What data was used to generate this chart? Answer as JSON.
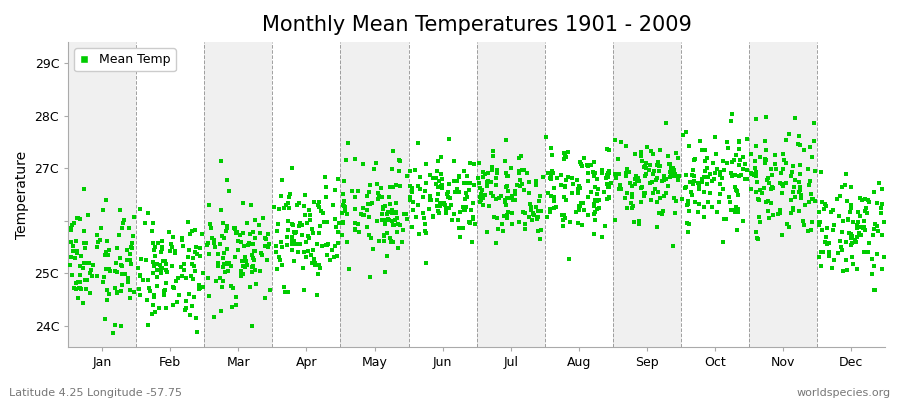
{
  "title": "Monthly Mean Temperatures 1901 - 2009",
  "ylabel": "Temperature",
  "xlabel_months": [
    "Jan",
    "Feb",
    "Mar",
    "Apr",
    "May",
    "Jun",
    "Jul",
    "Aug",
    "Sep",
    "Oct",
    "Nov",
    "Dec"
  ],
  "ytick_labels": [
    "24C",
    "25C",
    "",
    "27C",
    "28C",
    "29C"
  ],
  "ytick_values": [
    24,
    25,
    26,
    27,
    28,
    29
  ],
  "ylim": [
    23.6,
    29.4
  ],
  "marker_color": "#00CC00",
  "marker": "s",
  "marker_size": 2.5,
  "legend_label": "Mean Temp",
  "bottom_left_text": "Latitude 4.25 Longitude -57.75",
  "bottom_right_text": "worldspecies.org",
  "background_color": "#FFFFFF",
  "plot_background_odd": "#F0F0F0",
  "plot_background_even": "#FFFFFF",
  "title_fontsize": 15,
  "axis_fontsize": 10,
  "tick_fontsize": 9,
  "n_years": 109,
  "year_start": 1901,
  "year_end": 2009,
  "monthly_means": [
    25.2,
    25.1,
    25.4,
    25.8,
    26.2,
    26.5,
    26.5,
    26.6,
    26.8,
    26.8,
    26.7,
    25.8
  ],
  "monthly_stds": [
    0.5,
    0.5,
    0.5,
    0.48,
    0.46,
    0.44,
    0.44,
    0.44,
    0.46,
    0.48,
    0.5,
    0.52
  ],
  "trend_per_decade": 0.0
}
